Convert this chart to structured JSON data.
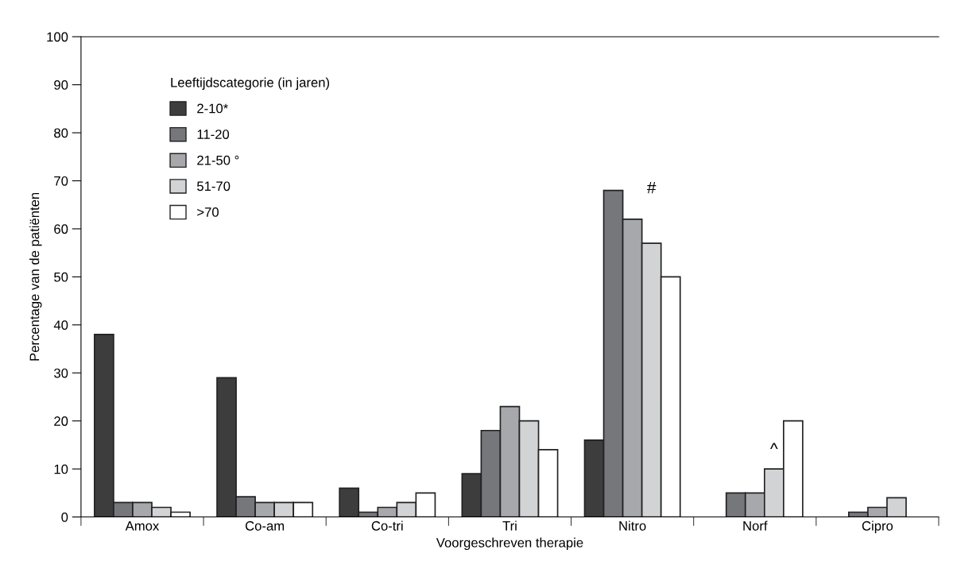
{
  "chart_data": {
    "type": "bar",
    "xlabel": "Voorgeschreven therapie",
    "ylabel": "Percentage van de patiënten",
    "legend_title": "Leeftijdscategorie (in jaren)",
    "categories": [
      "Amox",
      "Co-am",
      "Co-tri",
      "Tri",
      "Nitro",
      "Norf",
      "Cipro"
    ],
    "series": [
      {
        "name": "2-10*",
        "color": "#3d3d3d",
        "values": [
          38,
          29,
          6,
          9,
          16,
          null,
          null
        ]
      },
      {
        "name": "11-20",
        "color": "#76777b",
        "values": [
          3,
          4.2,
          1,
          18,
          68,
          5,
          1
        ]
      },
      {
        "name": "21-50 °",
        "color": "#a7a8ab",
        "values": [
          3,
          3,
          2,
          23,
          62,
          5,
          2
        ]
      },
      {
        "name": "51-70",
        "color": "#d2d3d5",
        "values": [
          2,
          3,
          3,
          20,
          57,
          10,
          4
        ]
      },
      {
        "name": ">70",
        "color": "#ffffff",
        "values": [
          1,
          3,
          5,
          14,
          50,
          20,
          null
        ]
      }
    ],
    "annotations": [
      "#",
      "^"
    ],
    "ylim": [
      0,
      100
    ],
    "yticks": [
      0,
      10,
      20,
      30,
      40,
      50,
      60,
      70,
      80,
      90,
      100
    ],
    "grid": false,
    "legend": "top left"
  }
}
